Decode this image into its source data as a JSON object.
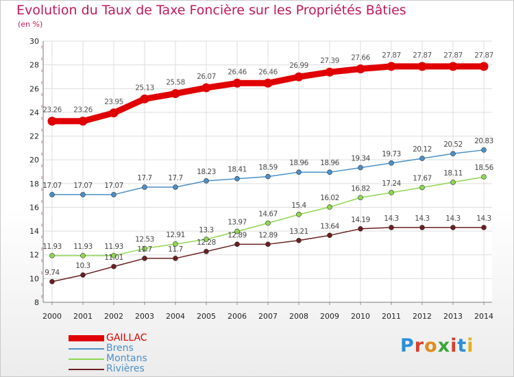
{
  "title": "Evolution du Taux de Taxe Foncière sur les Propriétés Bâties",
  "subtitle": "(en %)",
  "logo": {
    "text": "Proxiti",
    "colors": [
      "#2a8fd6",
      "#d6402a",
      "#e08a1e",
      "#3aa63a",
      "#d6402a",
      "#2a8fd6",
      "#e0b21e"
    ]
  },
  "chart_data": {
    "type": "line",
    "x": [
      "2000",
      "2001",
      "2002",
      "2003",
      "2004",
      "2005",
      "2006",
      "2007",
      "2008",
      "2009",
      "2010",
      "2011",
      "2012",
      "2013",
      "2014"
    ],
    "ylim": [
      8,
      30
    ],
    "yticks": [
      8,
      10,
      12,
      14,
      16,
      18,
      20,
      22,
      24,
      26,
      28,
      30
    ],
    "grid": true,
    "legend_position": "bottom-left",
    "series": [
      {
        "name": "GAILLAC",
        "color": "#e00000",
        "values": [
          23.26,
          23.26,
          23.95,
          25.13,
          25.58,
          26.07,
          26.46,
          26.46,
          26.99,
          27.39,
          27.66,
          27.87,
          27.87,
          27.87,
          27.87
        ],
        "labels": [
          "23.26",
          "23.26",
          "23.95",
          "25.13",
          "25.58",
          "26.07",
          "26.46",
          "26.46",
          "26.99",
          "27.39",
          "27.66",
          "27.87",
          "27.87",
          "27.87",
          "27.87"
        ]
      },
      {
        "name": "Brens",
        "color": "#4a90c8",
        "values": [
          17.07,
          17.07,
          17.07,
          17.7,
          17.7,
          18.23,
          18.41,
          18.59,
          18.96,
          18.96,
          19.34,
          19.73,
          20.12,
          20.52,
          20.83
        ],
        "labels": [
          "17.07",
          "17.07",
          "17.07",
          "17.7",
          "17.7",
          "18.23",
          "18.41",
          "18.59",
          "18.96",
          "18.96",
          "19.34",
          "19.73",
          "20.12",
          "20.52",
          "20.83"
        ]
      },
      {
        "name": "Montans",
        "color": "#8ed850",
        "values": [
          11.93,
          11.93,
          11.93,
          12.53,
          12.91,
          13.3,
          13.97,
          14.67,
          15.4,
          16.02,
          16.82,
          17.24,
          17.67,
          18.11,
          18.56
        ],
        "labels": [
          "11.93",
          "11.93",
          "11.93",
          "12.53",
          "12.91",
          "13.3",
          "13.97",
          "14.67",
          "15.4",
          "16.02",
          "16.82",
          "17.24",
          "17.67",
          "18.11",
          "18.56"
        ]
      },
      {
        "name": "Rivières",
        "color": "#6b1e1e",
        "values": [
          9.74,
          10.3,
          11.01,
          11.7,
          11.7,
          12.28,
          12.89,
          12.89,
          13.21,
          13.64,
          14.19,
          14.3,
          14.3,
          14.3,
          14.3
        ],
        "labels": [
          "9.74",
          "10.3",
          "11.01",
          "11.7",
          "11.7",
          "12.28",
          "12.89",
          "12.89",
          "13.21",
          "13.64",
          "14.19",
          "14.3",
          "14.3",
          "14.3",
          "14.3"
        ]
      }
    ]
  }
}
